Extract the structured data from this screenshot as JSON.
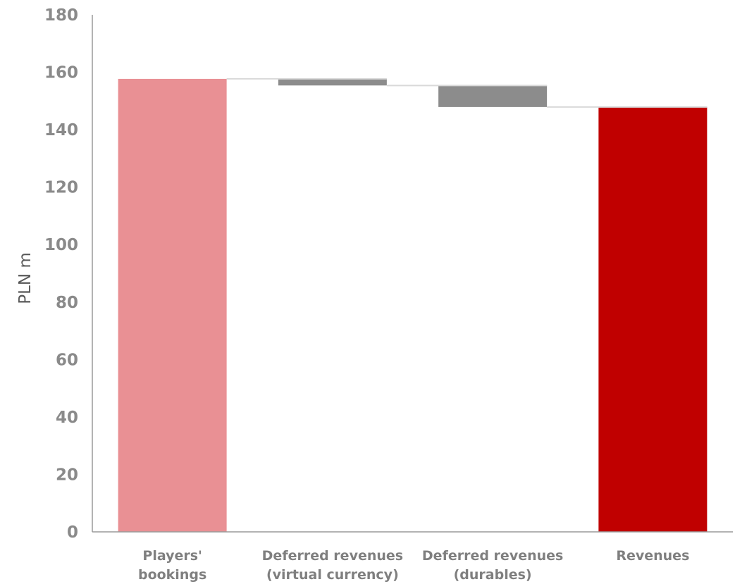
{
  "chart_data": {
    "type": "bar",
    "subtype": "waterfall",
    "title": "",
    "xlabel": "",
    "ylabel": "PLN m",
    "ylim": [
      0,
      180
    ],
    "yticks": [
      0,
      20,
      40,
      60,
      80,
      100,
      120,
      140,
      160,
      180
    ],
    "grid": false,
    "categories": [
      {
        "line1": "Players'",
        "line2": "bookings"
      },
      {
        "line1": "Deferred revenues",
        "line2": "(virtual currency)"
      },
      {
        "line1": "Deferred revenues",
        "line2": "(durables)"
      },
      {
        "line1": "Revenues",
        "line2": ""
      }
    ],
    "bars": [
      {
        "kind": "total",
        "start": 0,
        "end": 157.7,
        "color": "#e99094"
      },
      {
        "kind": "delta",
        "start": 157.7,
        "end": 155.4,
        "color": "#8c8c8c"
      },
      {
        "kind": "delta",
        "start": 155.4,
        "end": 147.9,
        "color": "#8c8c8c"
      },
      {
        "kind": "total",
        "start": 0,
        "end": 147.9,
        "color": "#c00000"
      }
    ],
    "connector_color": "#d9d9d9",
    "axis_color": "#9a9a9a"
  }
}
